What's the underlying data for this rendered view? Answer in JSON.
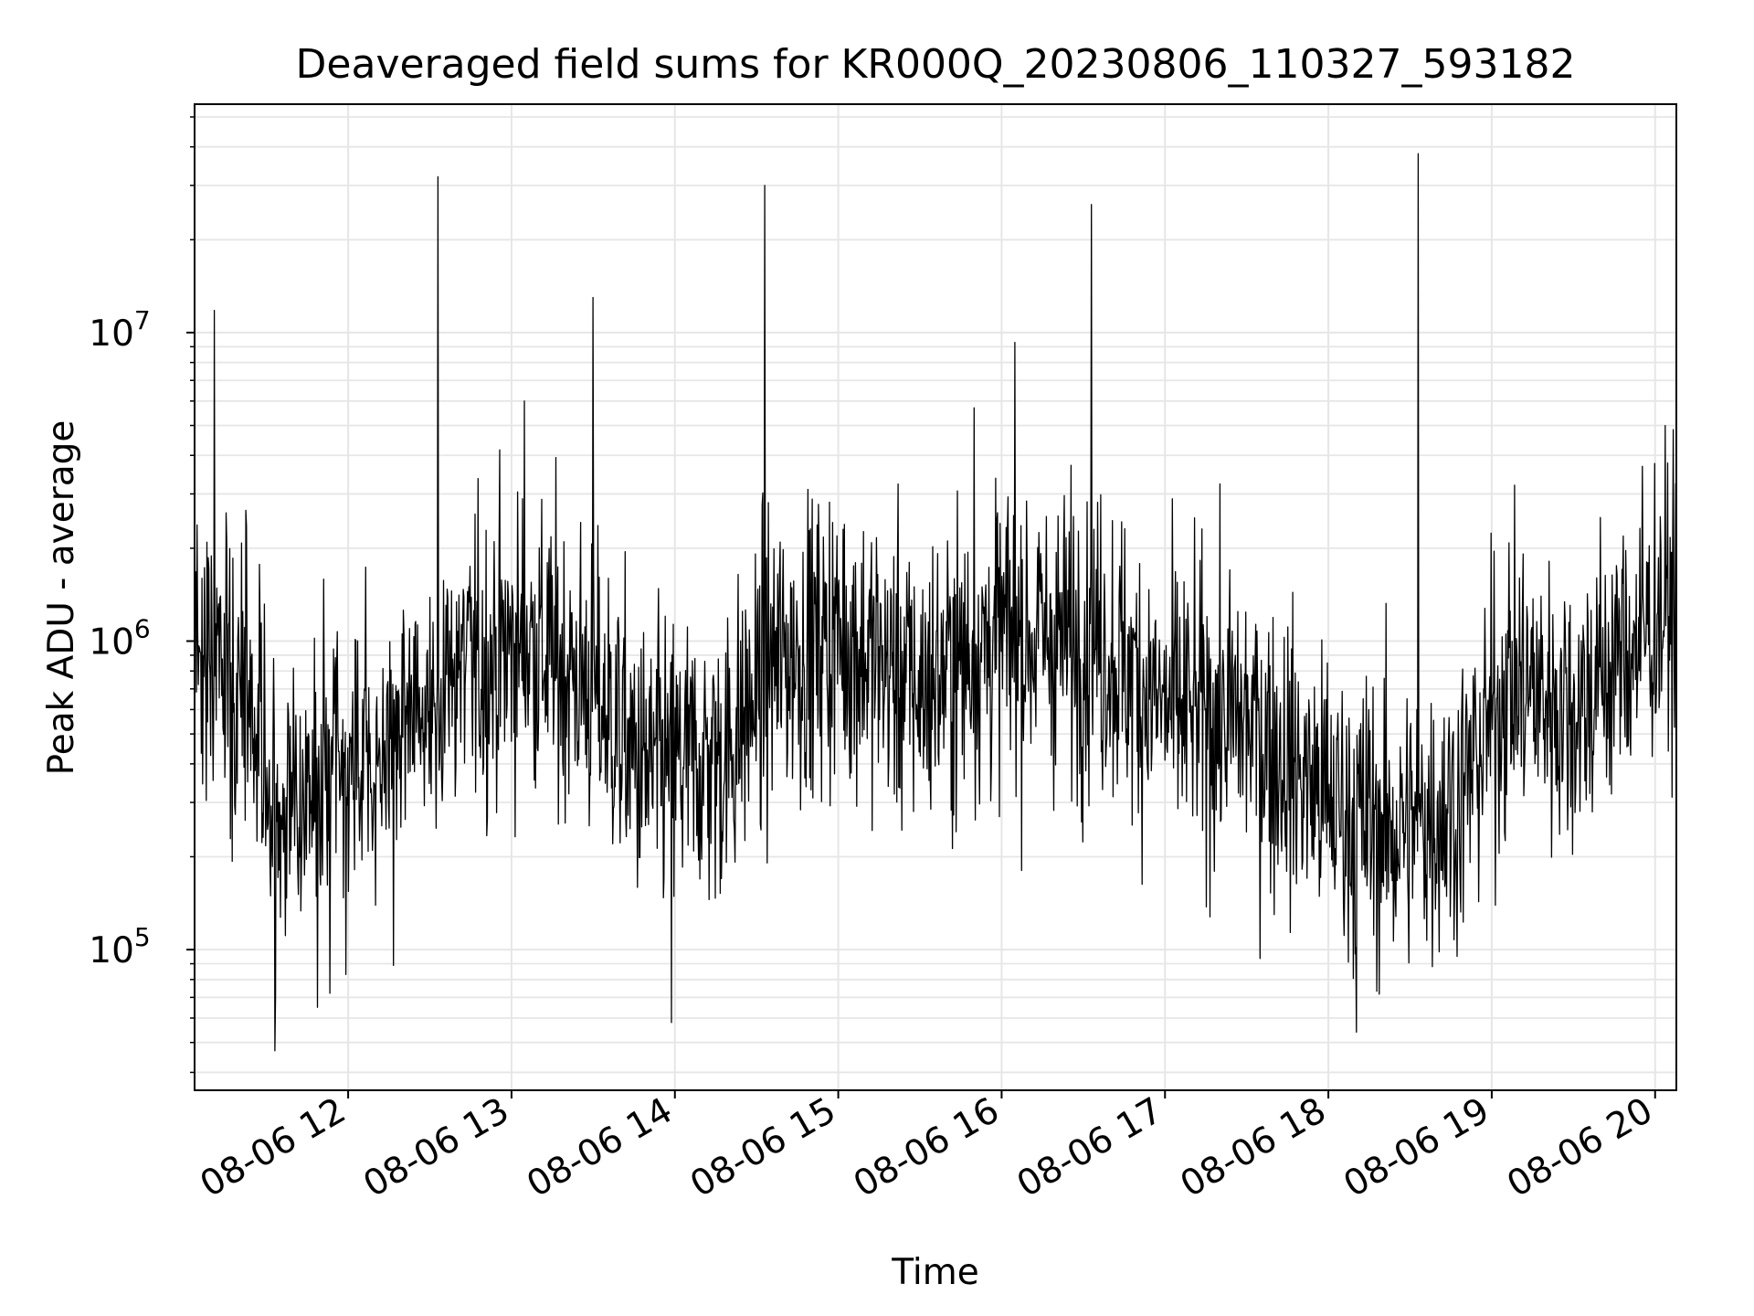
{
  "chart_data": {
    "type": "line",
    "title": "Deaveraged field sums for KR000Q_20230806_110327_593182",
    "xlabel": "Time",
    "ylabel": "Peak ADU - average",
    "x_tick_labels": [
      "08-06 12",
      "08-06 13",
      "08-06 14",
      "08-06 15",
      "08-06 16",
      "08-06 17",
      "08-06 18",
      "08-06 19",
      "08-06 20"
    ],
    "x_tick_hours": [
      12,
      13,
      14,
      15,
      16,
      17,
      18,
      19,
      20
    ],
    "xlim_hours": [
      11.06,
      20.13
    ],
    "y_scale": "log",
    "ylim": [
      35000,
      55000000
    ],
    "y_ticks": [
      {
        "value": 100000,
        "base": "10",
        "exp": "5"
      },
      {
        "value": 1000000,
        "base": "10",
        "exp": "6"
      },
      {
        "value": 10000000,
        "base": "10",
        "exp": "7"
      }
    ],
    "grid": true,
    "line_color": "#000000",
    "grid_color": "#e6e6e6",
    "approx_point_count": 2400,
    "spikes": [
      {
        "x_hour": 11.18,
        "y": 11800000
      },
      {
        "x_hour": 12.55,
        "y": 32000000
      },
      {
        "x_hour": 13.08,
        "y": 6000000
      },
      {
        "x_hour": 13.5,
        "y": 13000000
      },
      {
        "x_hour": 14.55,
        "y": 30000000
      },
      {
        "x_hour": 15.83,
        "y": 5700000
      },
      {
        "x_hour": 16.08,
        "y": 9300000
      },
      {
        "x_hour": 16.55,
        "y": 26000000
      },
      {
        "x_hour": 18.55,
        "y": 38000000
      }
    ],
    "dips": [
      {
        "x_hour": 11.55,
        "y": 47000
      },
      {
        "x_hour": 13.98,
        "y": 58000
      },
      {
        "x_hour": 18.17,
        "y": 54000
      }
    ],
    "baseline_trend": [
      {
        "x_hour": 11.06,
        "y": 1000000
      },
      {
        "x_hour": 11.35,
        "y": 700000
      },
      {
        "x_hour": 11.6,
        "y": 280000
      },
      {
        "x_hour": 11.9,
        "y": 330000
      },
      {
        "x_hour": 12.2,
        "y": 420000
      },
      {
        "x_hour": 12.6,
        "y": 750000
      },
      {
        "x_hour": 13.1,
        "y": 1000000
      },
      {
        "x_hour": 13.5,
        "y": 700000
      },
      {
        "x_hour": 13.8,
        "y": 380000
      },
      {
        "x_hour": 14.3,
        "y": 420000
      },
      {
        "x_hour": 14.6,
        "y": 850000
      },
      {
        "x_hour": 15.0,
        "y": 1050000
      },
      {
        "x_hour": 15.5,
        "y": 700000
      },
      {
        "x_hour": 16.0,
        "y": 1050000
      },
      {
        "x_hour": 16.6,
        "y": 1000000
      },
      {
        "x_hour": 17.0,
        "y": 600000
      },
      {
        "x_hour": 17.5,
        "y": 550000
      },
      {
        "x_hour": 18.0,
        "y": 300000
      },
      {
        "x_hour": 18.4,
        "y": 240000
      },
      {
        "x_hour": 18.8,
        "y": 300000
      },
      {
        "x_hour": 19.1,
        "y": 750000
      },
      {
        "x_hour": 19.5,
        "y": 600000
      },
      {
        "x_hour": 19.8,
        "y": 900000
      },
      {
        "x_hour": 20.13,
        "y": 1400000
      }
    ]
  }
}
